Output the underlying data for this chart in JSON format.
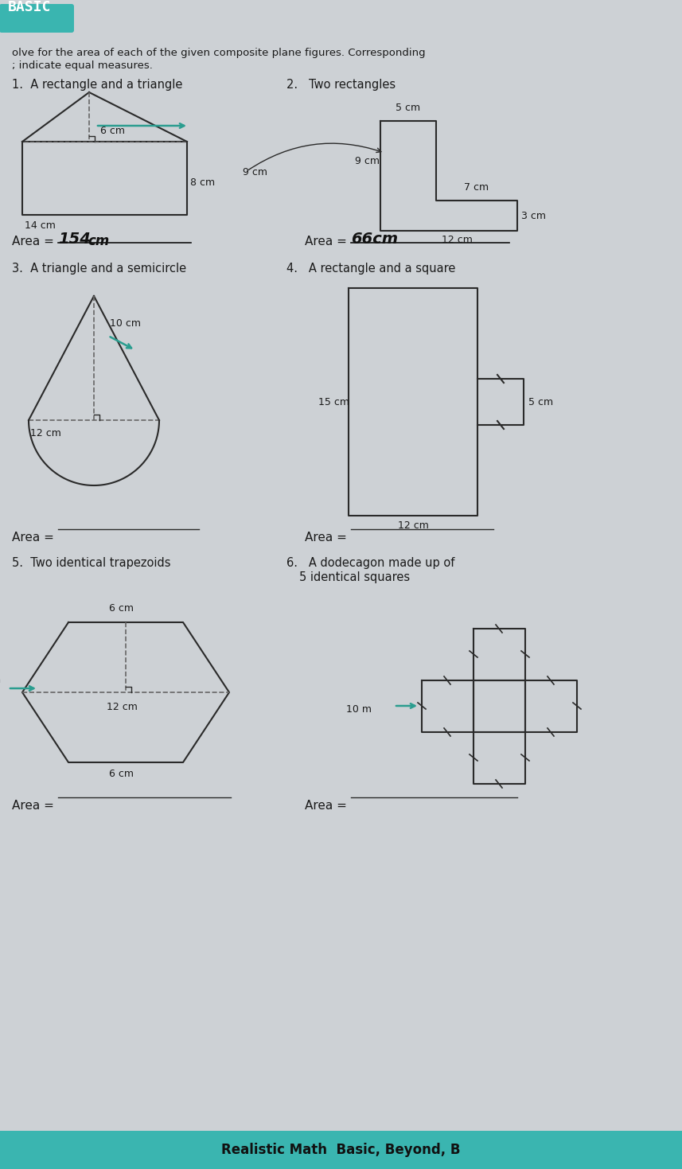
{
  "bg_color": "#cdd1d5",
  "header_color": "#3ab5b0",
  "header_text": "BASIC",
  "footer_text": "Realistic Math  Basic, Beyond, B",
  "footer_bg": "#3ab5b0",
  "line_color": "#2a2a2a",
  "dashed_color": "#666666",
  "arrow_color": "#2a9d8f",
  "text_color": "#1a1a1a",
  "handwritten_color": "#111111",
  "instruction1": "olve for the area of each of the given composite plane figures. Corresponding",
  "instruction2": "; indicate equal measures.",
  "p1_label": "A rectangle and a triangle",
  "p2_label": "Two rectangles",
  "p3_label": "A triangle and a semicircle",
  "p4_label": "A rectangle and a square",
  "p5_label": "Two identical trapezoids",
  "p6_label1": "A dodecagon made up of",
  "p6_label2": "5 identical squares",
  "area1": "154",
  "area1_unit": "cm",
  "area2": "66cm",
  "area_blank": ""
}
